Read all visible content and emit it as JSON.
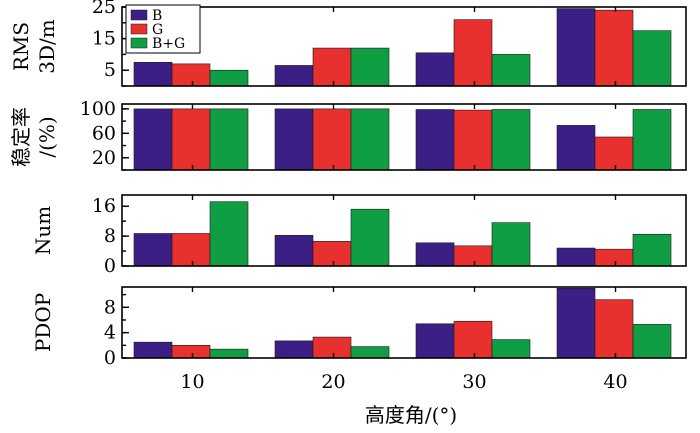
{
  "chart_data": {
    "type": "bar",
    "categories": [
      "10",
      "20",
      "30",
      "40"
    ],
    "xlabel": "高度角/(°)",
    "colors": {
      "B": "#3c1f85",
      "G": "#e8302f",
      "B+G": "#0f9e43"
    },
    "legend": {
      "placement": "top-left of first panel",
      "entries": [
        "B",
        "G",
        "B+G"
      ]
    },
    "panels": [
      {
        "name": "rms",
        "ylabel_lines": [
          "RMS",
          "3D/m"
        ],
        "ylim": [
          0,
          25
        ],
        "yticks": [
          "25",
          "15",
          "5"
        ],
        "ytick_values": [
          25,
          15,
          5
        ],
        "series": [
          {
            "name": "B",
            "values": [
              7.5,
              6.5,
              10.5,
              24.5
            ]
          },
          {
            "name": "G",
            "values": [
              7.0,
              12.0,
              21.0,
              24.0
            ]
          },
          {
            "name": "B+G",
            "values": [
              5.0,
              12.0,
              10.0,
              17.5
            ]
          }
        ]
      },
      {
        "name": "stability",
        "ylabel_lines": [
          "稳定率",
          "/(%)"
        ],
        "ylim": [
          0,
          108
        ],
        "yticks": [
          "100",
          "60",
          "20"
        ],
        "ytick_values": [
          100,
          60,
          20
        ],
        "series": [
          {
            "name": "B",
            "values": [
              100,
              100,
              99,
              73
            ]
          },
          {
            "name": "G",
            "values": [
              100,
              100,
              98,
              54
            ]
          },
          {
            "name": "B+G",
            "values": [
              100,
              100,
              99,
              99
            ]
          }
        ]
      },
      {
        "name": "num",
        "ylabel_lines": [
          "Num"
        ],
        "ylim": [
          0,
          19
        ],
        "yticks": [
          "16",
          "8",
          "0"
        ],
        "ytick_values": [
          16,
          8,
          0
        ],
        "series": [
          {
            "name": "B",
            "values": [
              8.7,
              8.2,
              6.2,
              4.8
            ]
          },
          {
            "name": "G",
            "values": [
              8.7,
              6.6,
              5.4,
              4.5
            ]
          },
          {
            "name": "B+G",
            "values": [
              17.2,
              15.2,
              11.6,
              8.5
            ]
          }
        ]
      },
      {
        "name": "pdop",
        "ylabel_lines": [
          "PDOP"
        ],
        "ylim": [
          0,
          11.2
        ],
        "yticks": [
          "8",
          "4",
          "0"
        ],
        "ytick_values": [
          8,
          4,
          0
        ],
        "series": [
          {
            "name": "B",
            "values": [
              2.5,
              2.7,
              5.4,
              11.0
            ]
          },
          {
            "name": "G",
            "values": [
              2.0,
              3.3,
              5.8,
              9.2
            ]
          },
          {
            "name": "B+G",
            "values": [
              1.4,
              1.8,
              2.9,
              5.3
            ]
          }
        ]
      }
    ]
  }
}
